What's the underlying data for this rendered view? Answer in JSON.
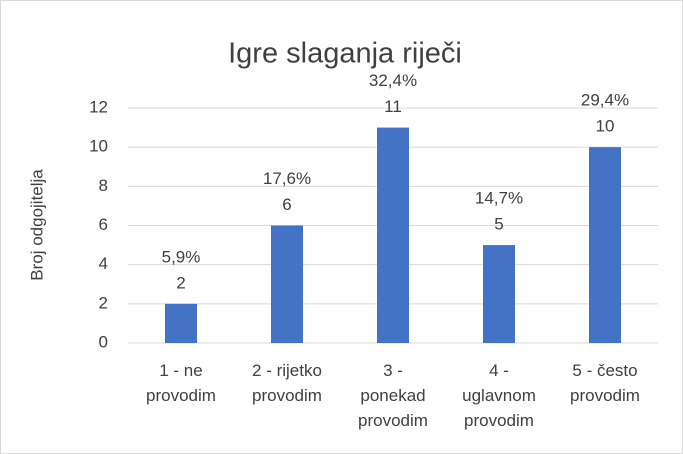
{
  "chart_data": {
    "type": "bar",
    "title": "Igre slaganja riječi",
    "y_label": "Broj odgojitelja",
    "categories": [
      "1 - ne\nprovodim",
      "2 - rijetko\nprovodim",
      "3 -\nponekad\nprovodim",
      "4 -\nuglavnom\nprovodim",
      "5 - često\nprovodim"
    ],
    "values": [
      2,
      6,
      11,
      5,
      10
    ],
    "percentages": [
      5.9,
      17.6,
      32.4,
      14.7,
      29.4
    ],
    "percentage_labels": [
      "5,9%",
      "17,6%",
      "32,4%",
      "14,7%",
      "29,4%"
    ],
    "color": "#4472c4",
    "ylim": [
      0,
      12
    ],
    "yticks": [
      0,
      2,
      4,
      6,
      8,
      10,
      12
    ],
    "grid": true
  }
}
